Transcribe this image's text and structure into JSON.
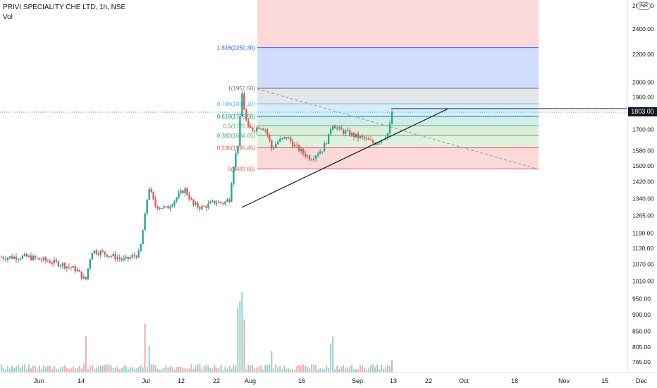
{
  "header": {
    "title": "PRIVI SPECIALITY CHE LTD, 1h, NSE",
    "volume_label": "Vol"
  },
  "currency_badge": "INR",
  "last_price_label": "1803.00",
  "colors": {
    "up": "#26a69a",
    "down": "#ef5350",
    "axis_text": "#131722",
    "fib_0": "#ef5350",
    "fib_0236": "#ef5350",
    "fib_0382": "#4caf50",
    "fib_05": "#4caf50",
    "fib_0618": "#009688",
    "fib_0786": "#64b5f6",
    "fib_1": "#787b86",
    "fib_1618": "#2962ff"
  },
  "chart_data": {
    "type": "candlestick",
    "y_scale": "log",
    "ylim": [
      735,
      2650
    ],
    "price_axis_ticks": [
      "2400.00",
      "2200.00",
      "2000.00",
      "1900.00",
      "1800.00",
      "1700.00",
      "1580.00",
      "1500.00",
      "1420.00",
      "1340.00",
      "1265.00",
      "1190.00",
      "1130.00",
      "1070.00",
      "1010.00",
      "950.00",
      "900.00",
      "850.00",
      "805.00",
      "765.00"
    ],
    "price_axis_top_partial": "2600.00",
    "time_axis_ticks": [
      "Jun",
      "14",
      "Jul",
      "12",
      "22",
      "Aug",
      "16",
      "Sep",
      "13",
      "22",
      "Oct",
      "18",
      "Nov",
      "15",
      "Dec"
    ],
    "last_price": 1803.0,
    "fibonacci": [
      {
        "ratio": 0,
        "price": 1483.65,
        "label": "0(1483.65)"
      },
      {
        "ratio": 0.236,
        "price": 1595.45,
        "label": "0.236(1595.45)"
      },
      {
        "ratio": 0.382,
        "price": 1664.65,
        "label": "0.382(1664.65)"
      },
      {
        "ratio": 0.5,
        "price": 1720.55,
        "label": "0.5(1720.55)"
      },
      {
        "ratio": 0.618,
        "price": 1776.5,
        "label": "0.618(1776.50)"
      },
      {
        "ratio": 0.786,
        "price": 1856.1,
        "label": "0.786(1856.10)"
      },
      {
        "ratio": 1,
        "price": 1957.5,
        "label": "1(1957.50)"
      },
      {
        "ratio": 1.618,
        "price": 2250.3,
        "label": "1.618(2250.30)"
      }
    ],
    "price_trend": [
      {
        "t": 0,
        "p": 1095
      },
      {
        "t": 8,
        "p": 1098
      },
      {
        "t": 14,
        "p": 1085
      },
      {
        "t": 20,
        "p": 1070
      },
      {
        "t": 25,
        "p": 1050
      },
      {
        "t": 28,
        "p": 1010
      },
      {
        "t": 30,
        "p": 1120
      },
      {
        "t": 33,
        "p": 1115
      },
      {
        "t": 37,
        "p": 1100
      },
      {
        "t": 41,
        "p": 1085
      },
      {
        "t": 46,
        "p": 1110
      },
      {
        "t": 48,
        "p": 1280
      },
      {
        "t": 49,
        "p": 1400
      },
      {
        "t": 51,
        "p": 1310
      },
      {
        "t": 55,
        "p": 1295
      },
      {
        "t": 58,
        "p": 1340
      },
      {
        "t": 61,
        "p": 1385
      },
      {
        "t": 64,
        "p": 1310
      },
      {
        "t": 67,
        "p": 1300
      },
      {
        "t": 71,
        "p": 1325
      },
      {
        "t": 74,
        "p": 1320
      },
      {
        "t": 76,
        "p": 1340
      },
      {
        "t": 77,
        "p": 1480
      },
      {
        "t": 78,
        "p": 1560
      },
      {
        "t": 79,
        "p": 1640
      },
      {
        "t": 80,
        "p": 1935
      },
      {
        "t": 81,
        "p": 1800
      },
      {
        "t": 82,
        "p": 1700
      },
      {
        "t": 84,
        "p": 1700
      },
      {
        "t": 86,
        "p": 1720
      },
      {
        "t": 88,
        "p": 1700
      },
      {
        "t": 90,
        "p": 1590
      },
      {
        "t": 92,
        "p": 1630
      },
      {
        "t": 95,
        "p": 1655
      },
      {
        "t": 98,
        "p": 1600
      },
      {
        "t": 101,
        "p": 1560
      },
      {
        "t": 103,
        "p": 1540
      },
      {
        "t": 105,
        "p": 1565
      },
      {
        "t": 107,
        "p": 1590
      },
      {
        "t": 109,
        "p": 1660
      },
      {
        "t": 110,
        "p": 1740
      },
      {
        "t": 112,
        "p": 1700
      },
      {
        "t": 115,
        "p": 1680
      },
      {
        "t": 118,
        "p": 1660
      },
      {
        "t": 121,
        "p": 1645
      },
      {
        "t": 124,
        "p": 1620
      },
      {
        "t": 127,
        "p": 1650
      },
      {
        "t": 129,
        "p": 1685
      },
      {
        "t": 130,
        "p": 1803
      }
    ],
    "volume_spikes": [
      {
        "t": 28,
        "v": 0.55
      },
      {
        "t": 48,
        "v": 0.6
      },
      {
        "t": 49,
        "v": 0.35
      },
      {
        "t": 79,
        "v": 1.0
      },
      {
        "t": 80,
        "v": 0.95
      },
      {
        "t": 81,
        "v": 0.6
      },
      {
        "t": 90,
        "v": 0.25
      },
      {
        "t": 110,
        "v": 0.4
      },
      {
        "t": 130,
        "v": 0.15
      }
    ]
  }
}
